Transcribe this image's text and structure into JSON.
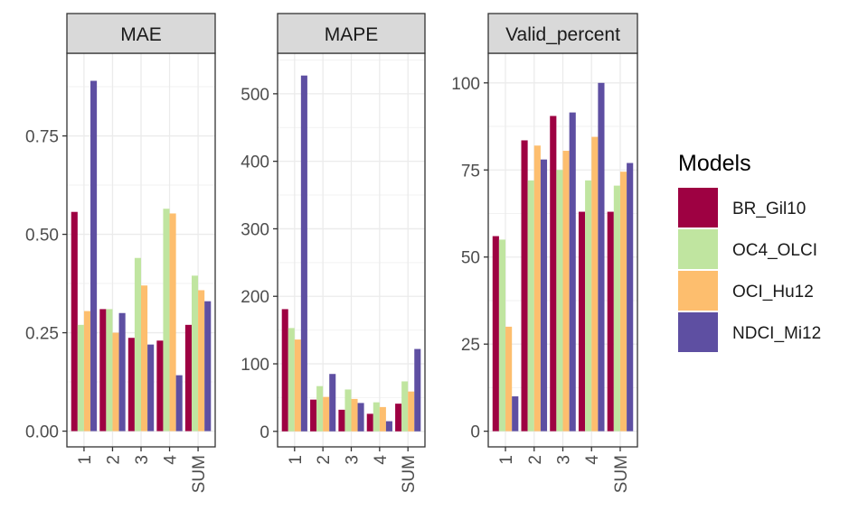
{
  "chart_data": {
    "type": "bar",
    "layout": "faceted",
    "categories": [
      "1",
      "2",
      "3",
      "4",
      "SUM"
    ],
    "legend": {
      "title": "Models",
      "placement": "right",
      "entries": [
        "BR_Gil10",
        "OC4_OLCI",
        "OCI_Hu12",
        "NDCI_Mi12"
      ]
    },
    "colors": {
      "BR_Gil10": "#9E0142",
      "OC4_OLCI": "#C0E5A0",
      "OCI_Hu12": "#FDBE6E",
      "NDCI_Mi12": "#5E4FA2"
    },
    "grid": true,
    "facets": [
      {
        "title": "MAE",
        "ylim": [
          -0.04,
          0.96
        ],
        "yticks": [
          0.0,
          0.25,
          0.5,
          0.75
        ],
        "ytick_labels": [
          "0.00",
          "0.25",
          "0.50",
          "0.75"
        ],
        "series": [
          {
            "name": "BR_Gil10",
            "values": [
              0.557,
              0.31,
              0.237,
              0.23,
              0.27
            ]
          },
          {
            "name": "OC4_OLCI",
            "values": [
              0.27,
              0.31,
              0.44,
              0.565,
              0.395
            ]
          },
          {
            "name": "OCI_Hu12",
            "values": [
              0.305,
              0.25,
              0.37,
              0.553,
              0.358
            ]
          },
          {
            "name": "NDCI_Mi12",
            "values": [
              0.89,
              0.3,
              0.22,
              0.142,
              0.33
            ]
          }
        ]
      },
      {
        "title": "MAPE",
        "ylim": [
          -23,
          560
        ],
        "yticks": [
          0,
          100,
          200,
          300,
          400,
          500
        ],
        "ytick_labels": [
          "0",
          "100",
          "200",
          "300",
          "400",
          "500"
        ],
        "series": [
          {
            "name": "BR_Gil10",
            "values": [
              181,
              47,
              32,
              26,
              41
            ]
          },
          {
            "name": "OC4_OLCI",
            "values": [
              153,
              67,
              62,
              43,
              74
            ]
          },
          {
            "name": "OCI_Hu12",
            "values": [
              136,
              51,
              48,
              36,
              59
            ]
          },
          {
            "name": "NDCI_Mi12",
            "values": [
              527,
              85,
              42,
              15,
              122
            ]
          }
        ]
      },
      {
        "title": "Valid_percent",
        "ylim": [
          -4.5,
          108.5
        ],
        "yticks": [
          0,
          25,
          50,
          75,
          100
        ],
        "ytick_labels": [
          "0",
          "25",
          "50",
          "75",
          "100"
        ],
        "series": [
          {
            "name": "BR_Gil10",
            "values": [
              56,
              83.5,
              90.5,
              63,
              63
            ]
          },
          {
            "name": "OC4_OLCI",
            "values": [
              55,
              72,
              75,
              72,
              70.5
            ]
          },
          {
            "name": "OCI_Hu12",
            "values": [
              30,
              82,
              80.5,
              84.5,
              74.5
            ]
          },
          {
            "name": "NDCI_Mi12",
            "values": [
              10,
              78,
              91.5,
              100,
              77
            ]
          }
        ]
      }
    ]
  }
}
